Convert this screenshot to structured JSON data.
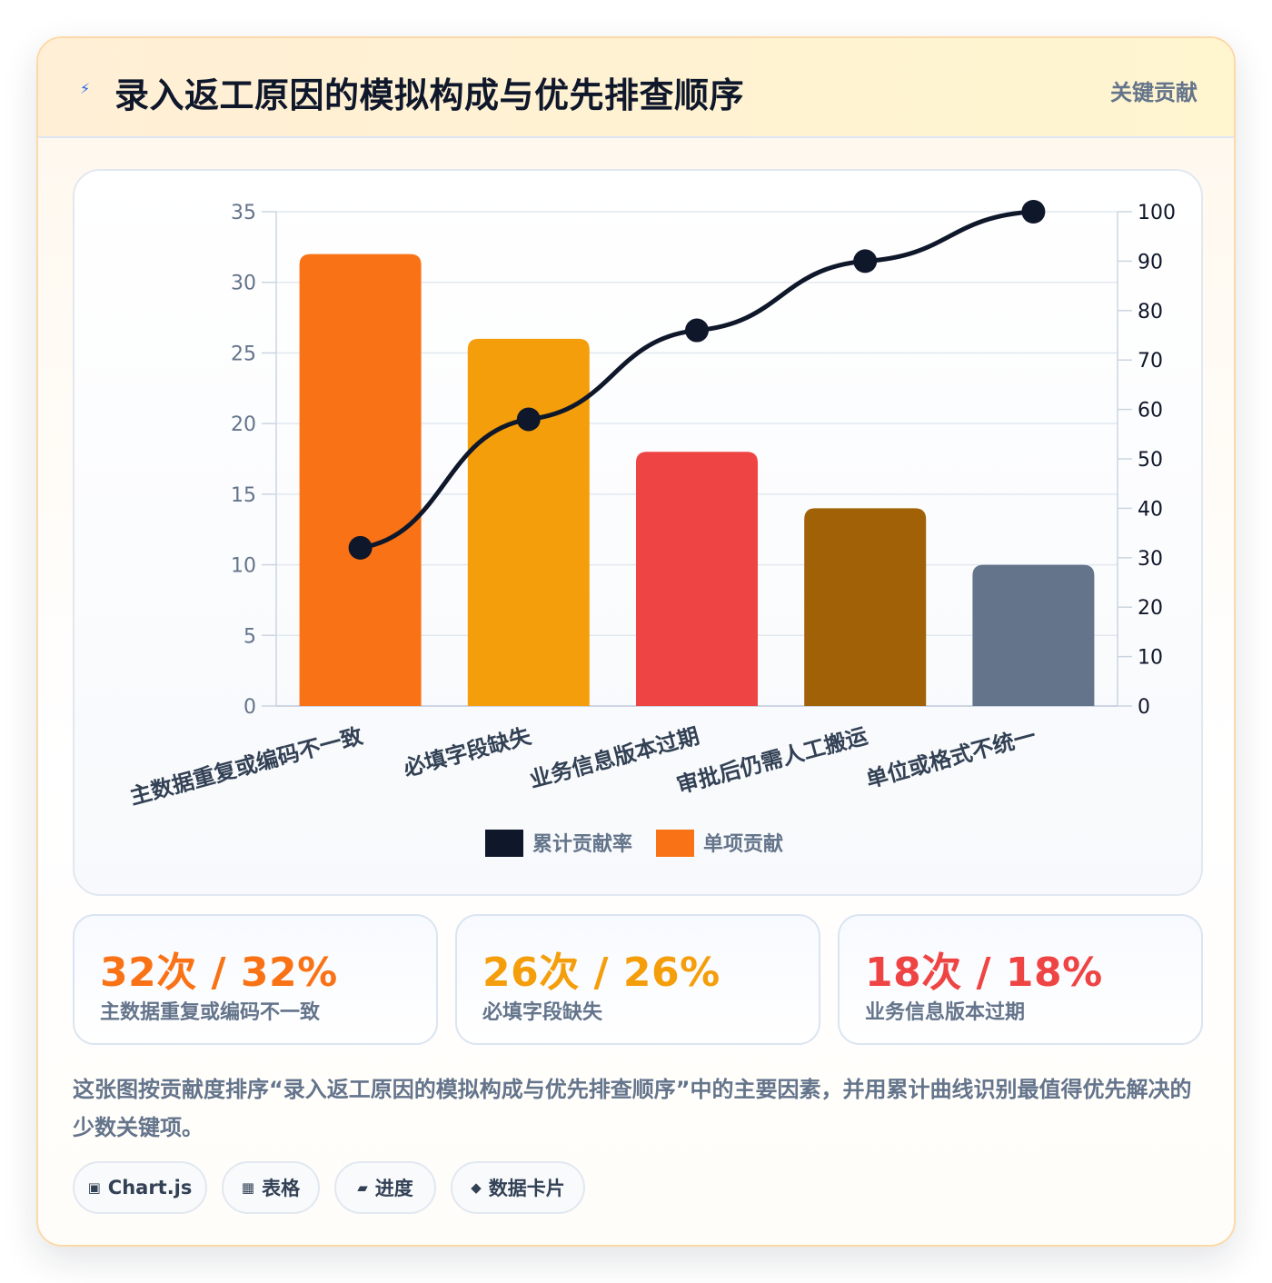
{
  "header": {
    "icon": "lightning-icon",
    "title": "录入返工原因的模拟构成与优先排查顺序",
    "badge": "关键贡献"
  },
  "chart_data": {
    "type": "bar",
    "categories": [
      "主数据重复或编码不一致",
      "必填字段缺失",
      "业务信息版本过期",
      "审批后仍需人工搬运",
      "单位或格式不统一"
    ],
    "series": [
      {
        "name": "单项贡献",
        "type": "bar",
        "axis": "left",
        "values": [
          32,
          26,
          18,
          14,
          10
        ],
        "colors": [
          "#f97316",
          "#f59e0b",
          "#ef4444",
          "#a16207",
          "#64748b"
        ]
      },
      {
        "name": "累计贡献率",
        "type": "line",
        "axis": "right",
        "values": [
          32,
          58,
          76,
          90,
          100
        ],
        "color": "#0f172a"
      }
    ],
    "ylim": [
      0,
      35
    ],
    "y_ticks": [
      0,
      5,
      10,
      15,
      20,
      25,
      30,
      35
    ],
    "y2lim": [
      0,
      100
    ],
    "y2_ticks": [
      0,
      10,
      20,
      30,
      40,
      50,
      60,
      70,
      80,
      90,
      100
    ],
    "legend": {
      "position": "bottom",
      "entries": [
        {
          "label": "累计贡献率",
          "color": "#0f172a"
        },
        {
          "label": "单项贡献",
          "color": "#f97316"
        }
      ]
    },
    "grid": true
  },
  "stats": [
    {
      "value": "32次 / 32%",
      "label": "主数据重复或编码不一致",
      "color": "#f97316"
    },
    {
      "value": "26次 / 26%",
      "label": "必填字段缺失",
      "color": "#f59e0b"
    },
    {
      "value": "18次 / 18%",
      "label": "业务信息版本过期",
      "color": "#ef4444"
    }
  ],
  "description": "这张图按贡献度排序“录入返工原因的模拟构成与优先排查顺序”中的主要因素，并用累计曲线识别最值得优先解决的少数关键项。",
  "tags": [
    {
      "icon": "▣",
      "label": "Chart.js"
    },
    {
      "icon": "▦",
      "label": "表格"
    },
    {
      "icon": "▰",
      "label": "进度"
    },
    {
      "icon": "◆",
      "label": "数据卡片"
    }
  ]
}
